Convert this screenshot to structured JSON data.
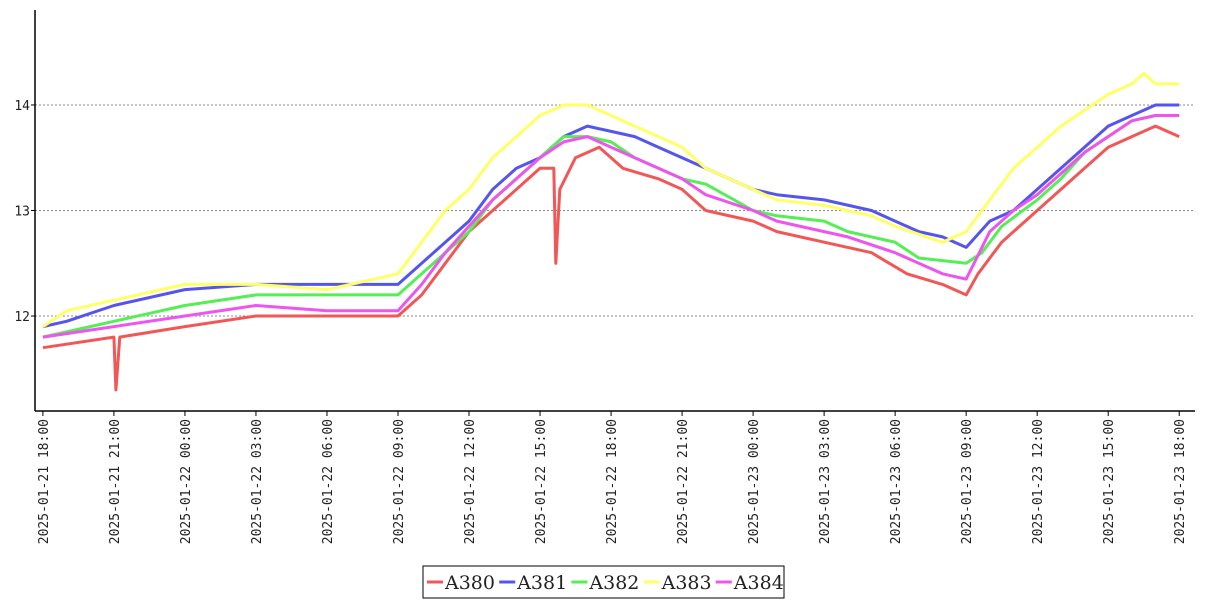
{
  "chart_data": {
    "type": "line",
    "title": "",
    "xlabel": "",
    "ylabel": "",
    "ylim": [
      11.1,
      14.9
    ],
    "xlim": [
      "2025-01-21 17:40",
      "2025-01-23 18:40"
    ],
    "yticks": [
      12,
      13,
      14
    ],
    "grid": "horizontal-dotted",
    "legend": "bottom-center",
    "xticks": [
      "2025-01-21 18:00",
      "2025-01-21 21:00",
      "2025-01-22 00:00",
      "2025-01-22 03:00",
      "2025-01-22 06:00",
      "2025-01-22 09:00",
      "2025-01-22 12:00",
      "2025-01-22 15:00",
      "2025-01-22 18:00",
      "2025-01-22 21:00",
      "2025-01-23 00:00",
      "2025-01-23 03:00",
      "2025-01-23 06:00",
      "2025-01-23 09:00",
      "2025-01-23 12:00",
      "2025-01-23 15:00",
      "2025-01-23 18:00"
    ],
    "series": [
      {
        "name": "A380",
        "color": "#f25757",
        "points": [
          [
            "2025-01-21 18:00",
            11.7
          ],
          [
            "2025-01-21 21:00",
            11.8
          ],
          [
            "2025-01-21 21:05",
            11.3
          ],
          [
            "2025-01-21 21:15",
            11.8
          ],
          [
            "2025-01-22 00:00",
            11.9
          ],
          [
            "2025-01-22 03:00",
            12.0
          ],
          [
            "2025-01-22 06:00",
            12.0
          ],
          [
            "2025-01-22 08:00",
            12.0
          ],
          [
            "2025-01-22 09:00",
            12.0
          ],
          [
            "2025-01-22 10:00",
            12.2
          ],
          [
            "2025-01-22 11:00",
            12.5
          ],
          [
            "2025-01-22 12:00",
            12.8
          ],
          [
            "2025-01-22 13:00",
            13.0
          ],
          [
            "2025-01-22 14:00",
            13.2
          ],
          [
            "2025-01-22 15:00",
            13.4
          ],
          [
            "2025-01-22 15:35",
            13.4
          ],
          [
            "2025-01-22 15:40",
            12.5
          ],
          [
            "2025-01-22 15:50",
            13.2
          ],
          [
            "2025-01-22 16:30",
            13.5
          ],
          [
            "2025-01-22 17:30",
            13.6
          ],
          [
            "2025-01-22 18:30",
            13.4
          ],
          [
            "2025-01-22 20:00",
            13.3
          ],
          [
            "2025-01-22 21:00",
            13.2
          ],
          [
            "2025-01-22 22:00",
            13.0
          ],
          [
            "2025-01-23 00:00",
            12.9
          ],
          [
            "2025-01-23 01:00",
            12.8
          ],
          [
            "2025-01-23 03:00",
            12.7
          ],
          [
            "2025-01-23 05:00",
            12.6
          ],
          [
            "2025-01-23 06:30",
            12.4
          ],
          [
            "2025-01-23 08:00",
            12.3
          ],
          [
            "2025-01-23 09:00",
            12.2
          ],
          [
            "2025-01-23 09:30",
            12.4
          ],
          [
            "2025-01-23 10:30",
            12.7
          ],
          [
            "2025-01-23 12:00",
            13.0
          ],
          [
            "2025-01-23 13:00",
            13.2
          ],
          [
            "2025-01-23 14:00",
            13.4
          ],
          [
            "2025-01-23 15:00",
            13.6
          ],
          [
            "2025-01-23 16:00",
            13.7
          ],
          [
            "2025-01-23 17:00",
            13.8
          ],
          [
            "2025-01-23 18:00",
            13.7
          ]
        ]
      },
      {
        "name": "A381",
        "color": "#5555ee",
        "points": [
          [
            "2025-01-21 18:00",
            11.9
          ],
          [
            "2025-01-21 19:00",
            11.95
          ],
          [
            "2025-01-21 21:00",
            12.1
          ],
          [
            "2025-01-22 00:00",
            12.25
          ],
          [
            "2025-01-22 03:00",
            12.3
          ],
          [
            "2025-01-22 06:00",
            12.3
          ],
          [
            "2025-01-22 09:00",
            12.3
          ],
          [
            "2025-01-22 10:00",
            12.5
          ],
          [
            "2025-01-22 11:00",
            12.7
          ],
          [
            "2025-01-22 12:00",
            12.9
          ],
          [
            "2025-01-22 13:00",
            13.2
          ],
          [
            "2025-01-22 14:00",
            13.4
          ],
          [
            "2025-01-22 15:00",
            13.5
          ],
          [
            "2025-01-22 16:00",
            13.7
          ],
          [
            "2025-01-22 17:00",
            13.8
          ],
          [
            "2025-01-22 18:00",
            13.75
          ],
          [
            "2025-01-22 19:00",
            13.7
          ],
          [
            "2025-01-22 20:00",
            13.6
          ],
          [
            "2025-01-22 21:00",
            13.5
          ],
          [
            "2025-01-22 22:00",
            13.4
          ],
          [
            "2025-01-22 23:00",
            13.3
          ],
          [
            "2025-01-23 00:00",
            13.2
          ],
          [
            "2025-01-23 01:00",
            13.15
          ],
          [
            "2025-01-23 03:00",
            13.1
          ],
          [
            "2025-01-23 05:00",
            13.0
          ],
          [
            "2025-01-23 06:00",
            12.9
          ],
          [
            "2025-01-23 07:00",
            12.8
          ],
          [
            "2025-01-23 08:00",
            12.75
          ],
          [
            "2025-01-23 09:00",
            12.65
          ],
          [
            "2025-01-23 10:00",
            12.9
          ],
          [
            "2025-01-23 11:00",
            13.0
          ],
          [
            "2025-01-23 12:00",
            13.2
          ],
          [
            "2025-01-23 13:00",
            13.4
          ],
          [
            "2025-01-23 14:00",
            13.6
          ],
          [
            "2025-01-23 15:00",
            13.8
          ],
          [
            "2025-01-23 16:00",
            13.9
          ],
          [
            "2025-01-23 17:00",
            14.0
          ],
          [
            "2025-01-23 18:00",
            14.0
          ]
        ]
      },
      {
        "name": "A382",
        "color": "#55ee55",
        "points": [
          [
            "2025-01-21 18:00",
            11.8
          ],
          [
            "2025-01-21 20:00",
            11.9
          ],
          [
            "2025-01-21 21:00",
            11.95
          ],
          [
            "2025-01-22 00:00",
            12.1
          ],
          [
            "2025-01-22 03:00",
            12.2
          ],
          [
            "2025-01-22 06:00",
            12.2
          ],
          [
            "2025-01-22 09:00",
            12.2
          ],
          [
            "2025-01-22 10:00",
            12.4
          ],
          [
            "2025-01-22 11:00",
            12.6
          ],
          [
            "2025-01-22 12:00",
            12.8
          ],
          [
            "2025-01-22 13:00",
            13.1
          ],
          [
            "2025-01-22 14:00",
            13.3
          ],
          [
            "2025-01-22 15:00",
            13.5
          ],
          [
            "2025-01-22 16:00",
            13.7
          ],
          [
            "2025-01-22 17:00",
            13.7
          ],
          [
            "2025-01-22 18:00",
            13.65
          ],
          [
            "2025-01-22 19:00",
            13.5
          ],
          [
            "2025-01-22 20:00",
            13.4
          ],
          [
            "2025-01-22 21:00",
            13.3
          ],
          [
            "2025-01-22 22:00",
            13.25
          ],
          [
            "2025-01-23 00:00",
            13.0
          ],
          [
            "2025-01-23 01:00",
            12.95
          ],
          [
            "2025-01-23 03:00",
            12.9
          ],
          [
            "2025-01-23 04:00",
            12.8
          ],
          [
            "2025-01-23 06:00",
            12.7
          ],
          [
            "2025-01-23 07:00",
            12.55
          ],
          [
            "2025-01-23 09:00",
            12.5
          ],
          [
            "2025-01-23 09:40",
            12.6
          ],
          [
            "2025-01-23 10:30",
            12.85
          ],
          [
            "2025-01-23 12:00",
            13.1
          ],
          [
            "2025-01-23 13:00",
            13.3
          ],
          [
            "2025-01-23 14:00",
            13.55
          ],
          [
            "2025-01-23 15:00",
            13.7
          ],
          [
            "2025-01-23 16:00",
            13.85
          ],
          [
            "2025-01-23 17:00",
            13.9
          ],
          [
            "2025-01-23 18:00",
            13.9
          ]
        ]
      },
      {
        "name": "A383",
        "color": "#ffff66",
        "points": [
          [
            "2025-01-21 18:00",
            11.9
          ],
          [
            "2025-01-21 19:00",
            12.05
          ],
          [
            "2025-01-21 21:00",
            12.15
          ],
          [
            "2025-01-22 00:00",
            12.3
          ],
          [
            "2025-01-22 03:00",
            12.3
          ],
          [
            "2025-01-22 06:00",
            12.25
          ],
          [
            "2025-01-22 09:00",
            12.4
          ],
          [
            "2025-01-22 10:00",
            12.7
          ],
          [
            "2025-01-22 11:00",
            13.0
          ],
          [
            "2025-01-22 12:00",
            13.2
          ],
          [
            "2025-01-22 13:00",
            13.5
          ],
          [
            "2025-01-22 14:00",
            13.7
          ],
          [
            "2025-01-22 15:00",
            13.9
          ],
          [
            "2025-01-22 16:00",
            14.0
          ],
          [
            "2025-01-22 17:00",
            14.0
          ],
          [
            "2025-01-22 18:00",
            13.9
          ],
          [
            "2025-01-22 19:00",
            13.8
          ],
          [
            "2025-01-22 20:00",
            13.7
          ],
          [
            "2025-01-22 21:00",
            13.6
          ],
          [
            "2025-01-22 22:00",
            13.4
          ],
          [
            "2025-01-22 23:00",
            13.3
          ],
          [
            "2025-01-23 00:00",
            13.2
          ],
          [
            "2025-01-23 01:00",
            13.1
          ],
          [
            "2025-01-23 03:00",
            13.05
          ],
          [
            "2025-01-23 05:00",
            12.95
          ],
          [
            "2025-01-23 06:00",
            12.85
          ],
          [
            "2025-01-23 08:00",
            12.7
          ],
          [
            "2025-01-23 09:00",
            12.8
          ],
          [
            "2025-01-23 10:00",
            13.1
          ],
          [
            "2025-01-23 11:00",
            13.4
          ],
          [
            "2025-01-23 12:00",
            13.6
          ],
          [
            "2025-01-23 13:00",
            13.8
          ],
          [
            "2025-01-23 14:00",
            13.95
          ],
          [
            "2025-01-23 15:00",
            14.1
          ],
          [
            "2025-01-23 16:00",
            14.2
          ],
          [
            "2025-01-23 16:30",
            14.3
          ],
          [
            "2025-01-23 17:00",
            14.2
          ],
          [
            "2025-01-23 18:00",
            14.2
          ]
        ]
      },
      {
        "name": "A384",
        "color": "#ee55ee",
        "points": [
          [
            "2025-01-21 18:00",
            11.8
          ],
          [
            "2025-01-21 21:00",
            11.9
          ],
          [
            "2025-01-22 00:00",
            12.0
          ],
          [
            "2025-01-22 03:00",
            12.1
          ],
          [
            "2025-01-22 06:00",
            12.05
          ],
          [
            "2025-01-22 09:00",
            12.05
          ],
          [
            "2025-01-22 10:00",
            12.3
          ],
          [
            "2025-01-22 11:00",
            12.6
          ],
          [
            "2025-01-22 12:00",
            12.85
          ],
          [
            "2025-01-22 13:00",
            13.1
          ],
          [
            "2025-01-22 14:00",
            13.3
          ],
          [
            "2025-01-22 15:00",
            13.5
          ],
          [
            "2025-01-22 16:00",
            13.65
          ],
          [
            "2025-01-22 17:00",
            13.7
          ],
          [
            "2025-01-22 18:00",
            13.6
          ],
          [
            "2025-01-22 19:00",
            13.5
          ],
          [
            "2025-01-22 20:00",
            13.4
          ],
          [
            "2025-01-22 21:00",
            13.3
          ],
          [
            "2025-01-22 22:00",
            13.15
          ],
          [
            "2025-01-23 00:00",
            13.0
          ],
          [
            "2025-01-23 01:00",
            12.9
          ],
          [
            "2025-01-23 03:00",
            12.8
          ],
          [
            "2025-01-23 04:00",
            12.75
          ],
          [
            "2025-01-23 06:00",
            12.6
          ],
          [
            "2025-01-23 07:00",
            12.5
          ],
          [
            "2025-01-23 08:00",
            12.4
          ],
          [
            "2025-01-23 09:00",
            12.35
          ],
          [
            "2025-01-23 10:00",
            12.8
          ],
          [
            "2025-01-23 11:00",
            13.0
          ],
          [
            "2025-01-23 12:00",
            13.15
          ],
          [
            "2025-01-23 13:00",
            13.35
          ],
          [
            "2025-01-23 14:00",
            13.55
          ],
          [
            "2025-01-23 15:00",
            13.7
          ],
          [
            "2025-01-23 16:00",
            13.85
          ],
          [
            "2025-01-23 17:00",
            13.9
          ],
          [
            "2025-01-23 18:00",
            13.9
          ]
        ]
      }
    ]
  }
}
